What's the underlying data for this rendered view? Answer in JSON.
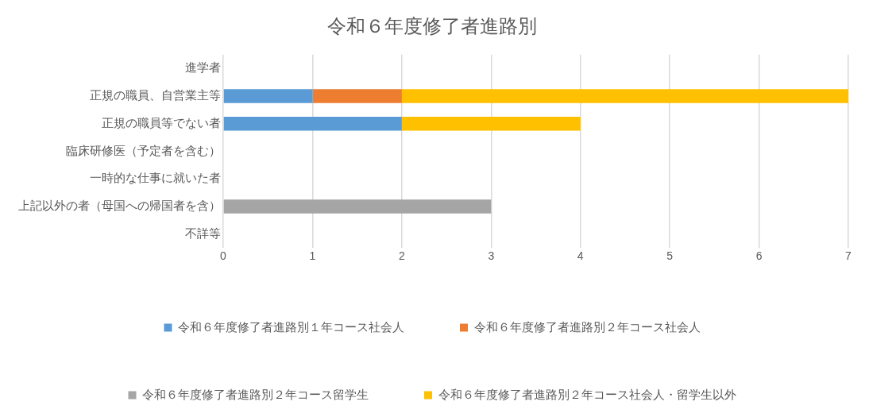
{
  "chart_data": {
    "type": "bar",
    "orientation": "horizontal",
    "stacked": true,
    "title": "令和６年度修了者進路別",
    "categories": [
      "進学者",
      "正規の職員、自営業主等",
      "正規の職員等でない者",
      "臨床研修医（予定者を含む）",
      "一時的な仕事に就いた者",
      "上記以外の者（母国への帰国者を含）",
      "不詳等"
    ],
    "series": [
      {
        "name": "令和６年度修了者進路別１年コース社会人",
        "color": "#5b9bd5",
        "values": [
          0,
          1,
          2,
          0,
          0,
          0,
          0
        ]
      },
      {
        "name": "令和６年度修了者進路別２年コース社会人",
        "color": "#ed7d31",
        "values": [
          0,
          1,
          0,
          0,
          0,
          0,
          0
        ]
      },
      {
        "name": "令和６年度修了者進路別２年コース留学生",
        "color": "#a5a5a5",
        "values": [
          0,
          0,
          0,
          0,
          0,
          3,
          0
        ]
      },
      {
        "name": "令和６年度修了者進路別２年コース社会人・留学生以外",
        "color": "#ffc000",
        "values": [
          0,
          5,
          2,
          0,
          0,
          0,
          0
        ]
      }
    ],
    "xlim": [
      0,
      7
    ],
    "xticks": [
      0,
      1,
      2,
      3,
      4,
      5,
      6,
      7
    ],
    "grid": "x",
    "legend": "bottom"
  }
}
